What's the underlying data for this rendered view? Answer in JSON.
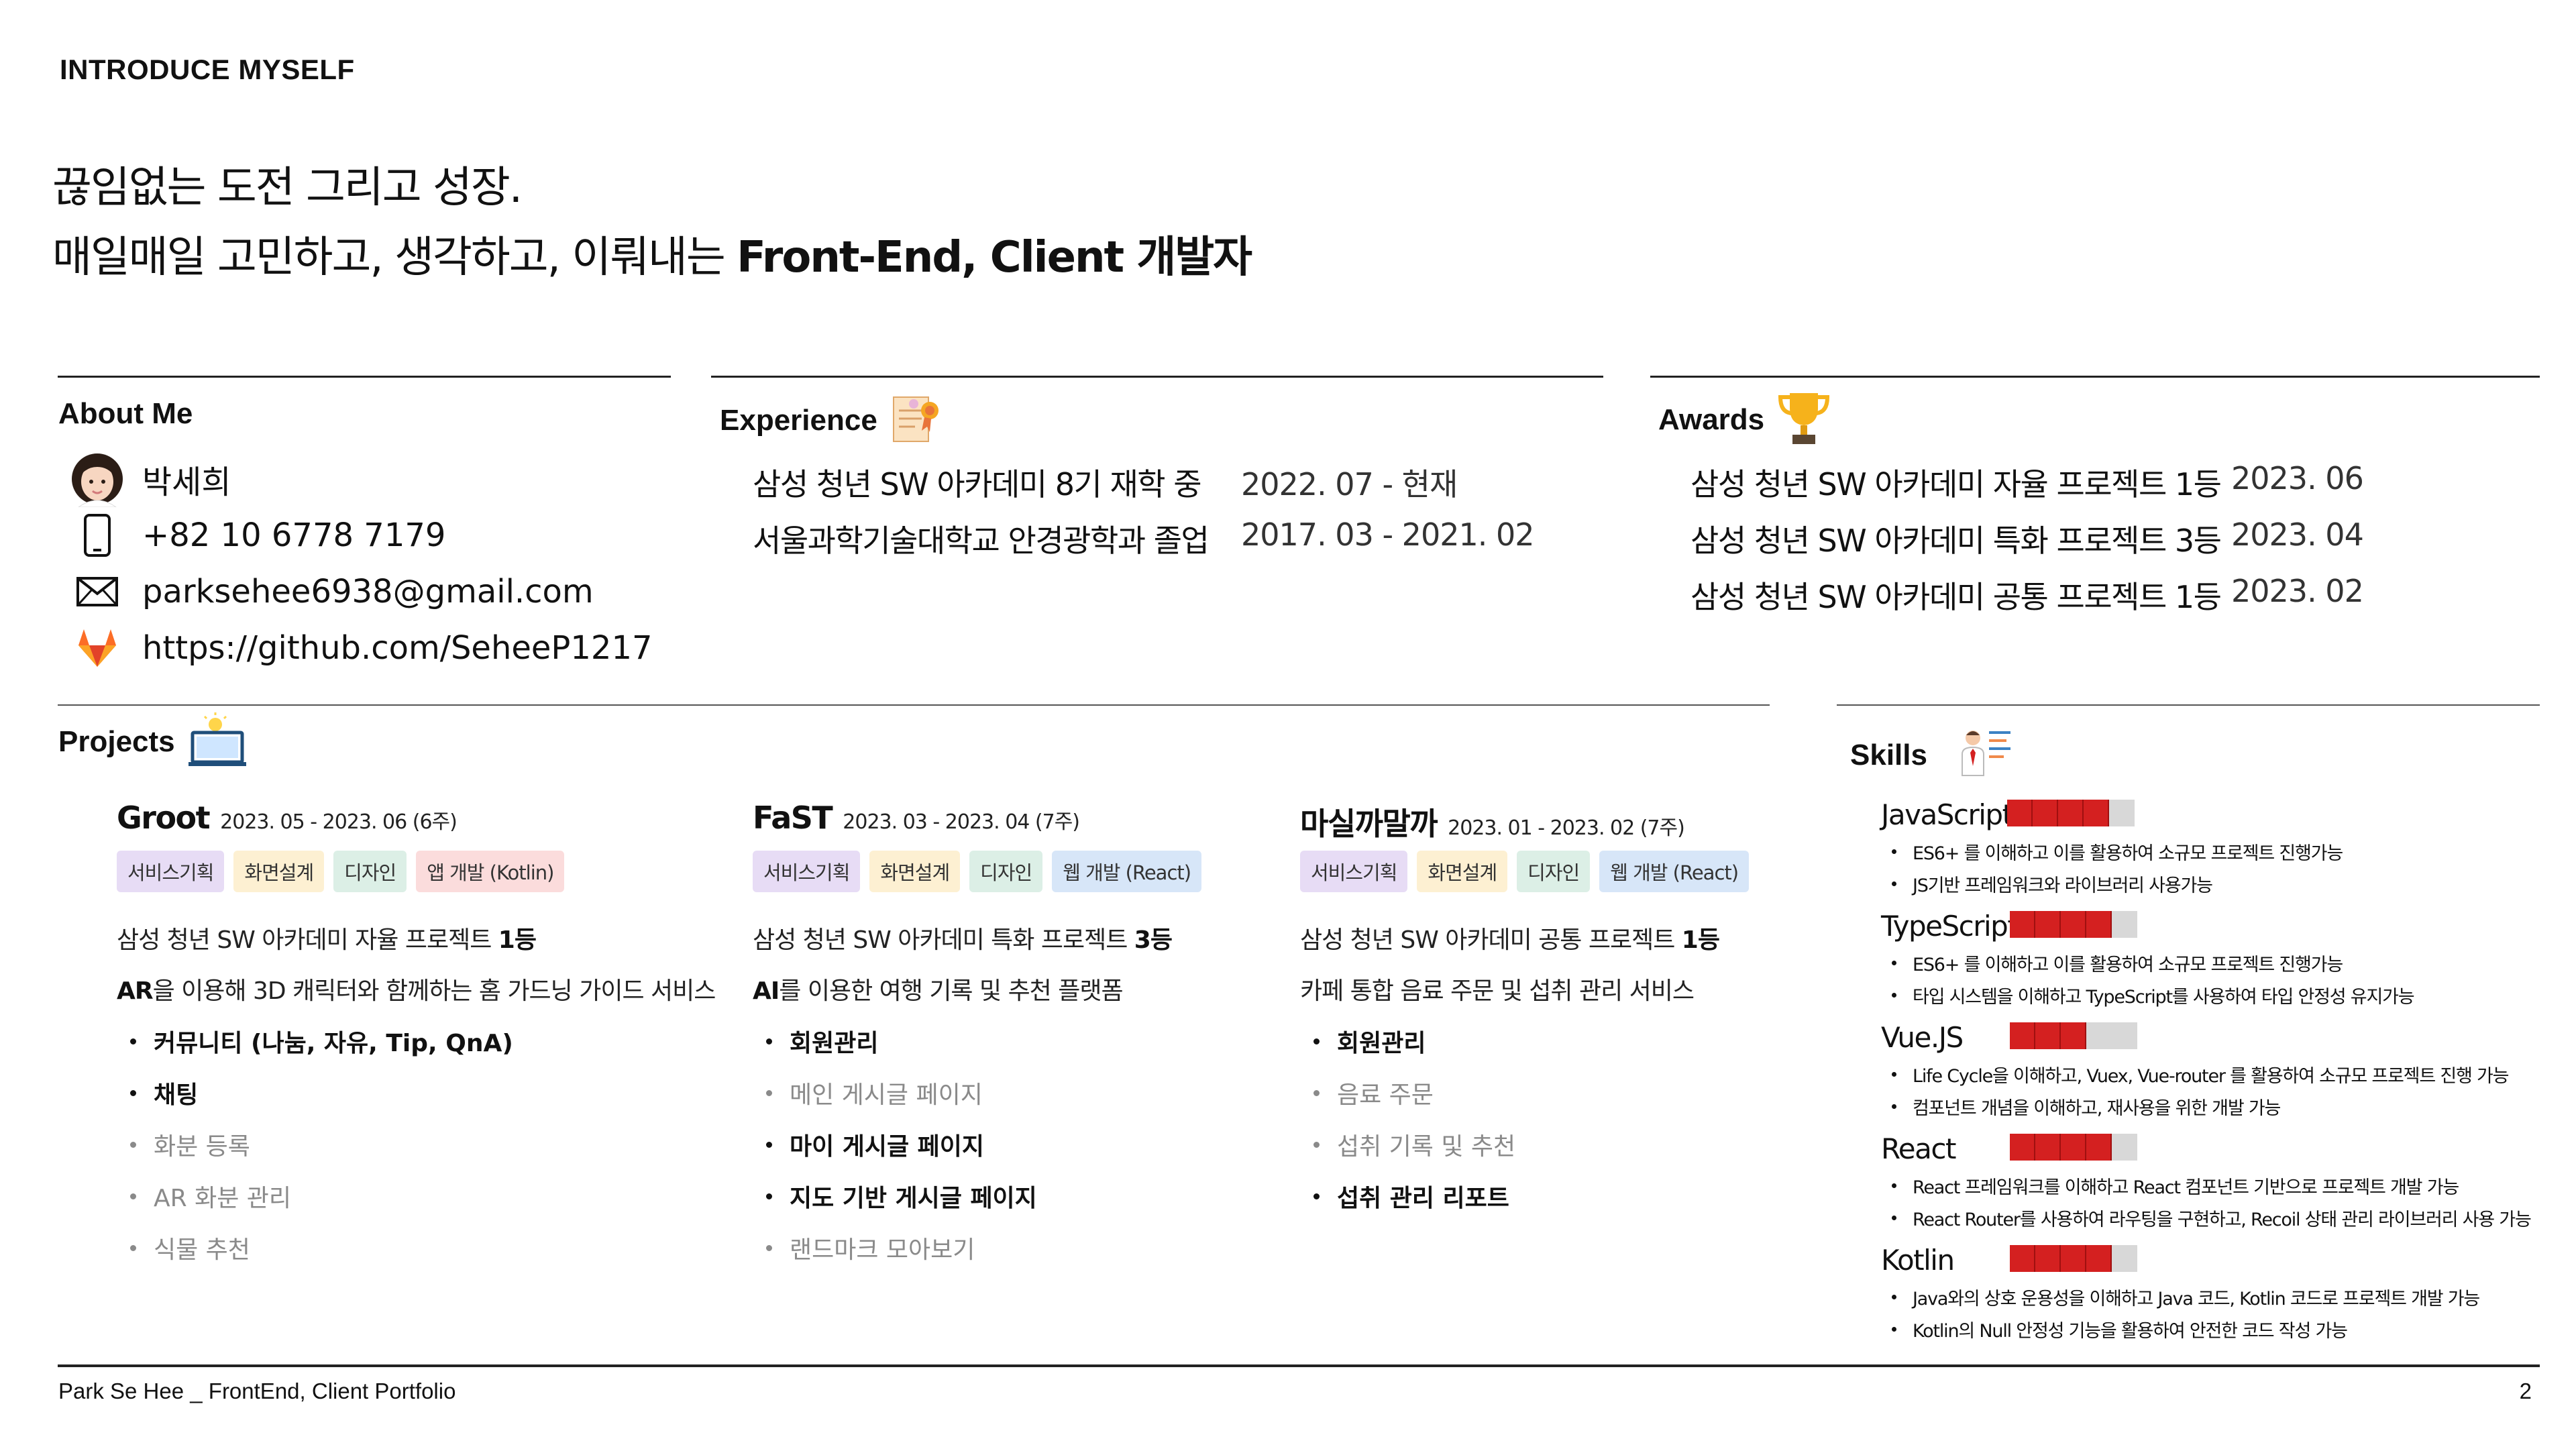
{
  "header": {
    "label": "INTRODUCE MYSELF",
    "headline1": "끊임없는 도전 그리고 성장.",
    "headline2_prefix": "매일매일 고민하고, 생각하고, 이뤄내는 ",
    "headline2_bold": "Front-End, Client 개발자"
  },
  "about": {
    "title": "About Me",
    "name": "박세희",
    "phone": "+82 10 6778 7179",
    "email": "parksehee6938@gmail.com",
    "github": "https://github.com/SeheeP1217"
  },
  "experience": {
    "title": "Experience",
    "items": [
      {
        "label": "삼성 청년 SW 아카데미 8기 재학 중",
        "date": "2022. 07 - 현재"
      },
      {
        "label": "서울과학기술대학교 안경광학과 졸업",
        "date": "2017. 03 - 2021. 02"
      }
    ]
  },
  "awards": {
    "title": "Awards",
    "items": [
      {
        "label": "삼성 청년 SW 아카데미 자율 프로젝트 1등",
        "date": "2023. 06"
      },
      {
        "label": "삼성 청년 SW 아카데미 특화 프로젝트 3등",
        "date": "2023. 04"
      },
      {
        "label": "삼성 청년 SW 아카데미 공통 프로젝트 1등",
        "date": "2023. 02"
      }
    ]
  },
  "projects": {
    "title": "Projects",
    "items": [
      {
        "name": "Groot",
        "period": "2023. 05 - 2023. 06 (6주)",
        "tags": [
          "서비스기획",
          "화면설계",
          "디자인",
          "앱 개발 (Kotlin)"
        ],
        "award_prefix": "삼성 청년 SW 아카데미 자율 프로젝트 ",
        "award_bold": "1등",
        "desc_bold": "AR",
        "desc_rest": "을 이용해 3D 캐릭터와 함께하는 홈 가드닝 가이드 서비스",
        "features": [
          {
            "text": "커뮤니티 (나눔, 자유, Tip, QnA)",
            "done": true
          },
          {
            "text": "채팅",
            "done": true
          },
          {
            "text": "화분 등록",
            "done": false
          },
          {
            "text": "AR 화분 관리",
            "done": false
          },
          {
            "text": "식물 추천",
            "done": false
          }
        ]
      },
      {
        "name": "FaST",
        "period": "2023. 03 - 2023. 04 (7주)",
        "tags": [
          "서비스기획",
          "화면설계",
          "디자인",
          "웹 개발 (React)"
        ],
        "award_prefix": "삼성 청년 SW 아카데미 특화 프로젝트 ",
        "award_bold": "3등",
        "desc_bold": "AI",
        "desc_rest": "를 이용한 여행 기록 및 추천 플랫폼",
        "features": [
          {
            "text": "회원관리",
            "done": true
          },
          {
            "text": "메인 게시글 페이지",
            "done": false
          },
          {
            "text": "마이 게시글 페이지",
            "done": true
          },
          {
            "text": "지도 기반 게시글 페이지",
            "done": true
          },
          {
            "text": "랜드마크 모아보기",
            "done": false
          }
        ]
      },
      {
        "name": "마실까말까",
        "period": "2023. 01 - 2023. 02 (7주)",
        "tags": [
          "서비스기획",
          "화면설계",
          "디자인",
          "웹 개발 (React)"
        ],
        "award_prefix": "삼성 청년 SW 아카데미 공통 프로젝트 ",
        "award_bold": "1등",
        "desc_bold": "",
        "desc_rest": "카페 통합 음료 주문 및 섭취 관리 서비스",
        "features": [
          {
            "text": "회원관리",
            "done": true
          },
          {
            "text": "음료 주문",
            "done": false
          },
          {
            "text": "섭취 기록 및 추천",
            "done": false
          },
          {
            "text": "섭취 관리 리포트",
            "done": true
          }
        ]
      }
    ]
  },
  "skills": {
    "title": "Skills",
    "items": [
      {
        "name": "JavaScript",
        "level": 0.8,
        "notes": [
          "ES6+ 를 이해하고 이를 활용하여 소규모 프로젝트 진행가능",
          "JS기반 프레임워크와 라이브러리 사용가능"
        ]
      },
      {
        "name": "TypeScript",
        "level": 0.8,
        "notes": [
          "ES6+ 를 이해하고 이를 활용하여 소규모 프로젝트 진행가능",
          "타입 시스템을 이해하고 TypeScript를 사용하여 타입 안정성 유지가능"
        ]
      },
      {
        "name": "Vue.JS",
        "level": 0.6,
        "notes": [
          "Life Cycle을 이해하고, Vuex, Vue-router 를 활용하여 소규모 프로젝트 진행 가능",
          "컴포넌트 개념을 이해하고, 재사용을 위한 개발 가능"
        ]
      },
      {
        "name": "React",
        "level": 0.8,
        "notes": [
          "React 프레임워크를 이해하고 React 컴포넌트 기반으로 프로젝트 개발 가능",
          "React Router를 사용하여 라우팅을 구현하고, Recoil 상태 관리 라이브러리 사용 가능"
        ]
      },
      {
        "name": "Kotlin",
        "level": 0.8,
        "notes": [
          "Java와의 상호 운용성을 이해하고 Java 코드, Kotlin 코드로 프로젝트 개발 가능",
          "Kotlin의 Null 안정성 기능을 활용하여 안전한 코드 작성 가능"
        ]
      }
    ]
  },
  "footer": {
    "left": "Park Se Hee _ FrontEnd, Client Portfolio",
    "page": "2"
  },
  "colors": {
    "skill_bar": "#d42020",
    "tag_purple": "#e7dcf5",
    "tag_yellow": "#fdf0d2",
    "tag_green": "#dcefe6",
    "tag_pink": "#fbdcdc",
    "tag_blue": "#d7e6f8"
  },
  "icons": [
    "avatar-icon",
    "phone-icon",
    "mail-icon",
    "gitlab-icon",
    "certificate-icon",
    "trophy-icon",
    "laptop-bulb-icon",
    "presenter-icon"
  ]
}
